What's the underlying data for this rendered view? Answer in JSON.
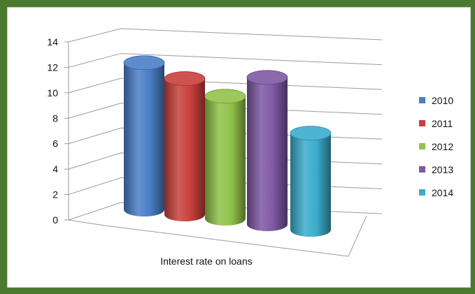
{
  "chart_data": {
    "type": "bar",
    "style": "3d-cylinder",
    "categories": [
      "Interest rate on loans"
    ],
    "xlabel": "Interest rate on loans",
    "ylabel": "",
    "ylim": [
      0,
      14
    ],
    "yticks": [
      "0",
      "2",
      "4",
      "6",
      "8",
      "10",
      "12",
      "14"
    ],
    "grid": true,
    "legend_position": "right",
    "series": [
      {
        "name": "2010",
        "values": [
          12.0
        ],
        "color": "#4a7ec8"
      },
      {
        "name": "2011",
        "values": [
          11.1
        ],
        "color": "#c9403c"
      },
      {
        "name": "2012",
        "values": [
          10.0
        ],
        "color": "#92c24a"
      },
      {
        "name": "2013",
        "values": [
          12.0
        ],
        "color": "#7e58a4"
      },
      {
        "name": "2014",
        "values": [
          7.9
        ],
        "color": "#3aaccc"
      }
    ]
  },
  "colors": {
    "frame": "#4a7a2e"
  }
}
